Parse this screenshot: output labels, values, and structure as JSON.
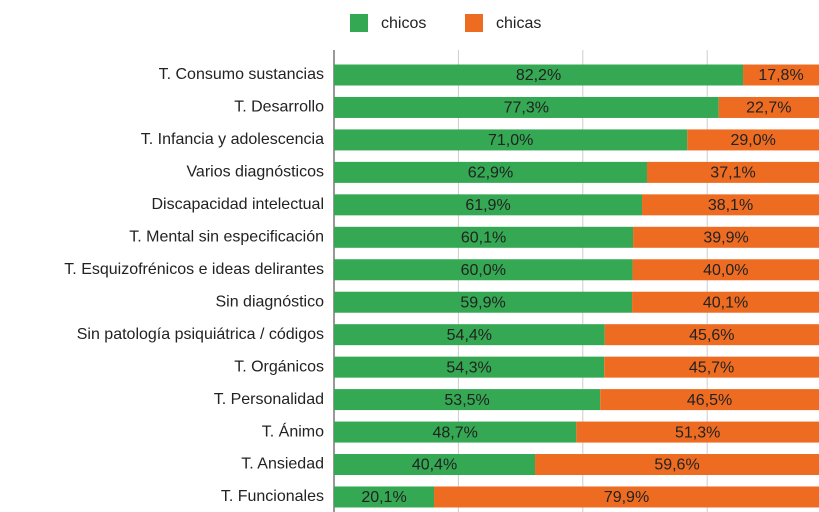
{
  "chart_data": {
    "type": "stacked-bar-horizontal",
    "categories": [
      "T. Consumo sustancias",
      "T. Desarrollo",
      "T. Infancia y adolescencia",
      "Varios diagnósticos",
      "Discapacidad intelectual",
      "T. Mental sin especificación",
      "T. Esquizofrénicos e ideas delirantes",
      "Sin diagnóstico",
      "Sin patología psiquiátrica / códigos",
      "T. Orgánicos",
      "T. Personalidad",
      "T. Ánimo",
      "T. Ansiedad",
      "T. Funcionales"
    ],
    "series": [
      {
        "name": "chicos",
        "color": "#34a853",
        "values": [
          82.2,
          77.3,
          71.0,
          62.9,
          61.9,
          60.1,
          60.0,
          59.9,
          54.4,
          54.3,
          53.5,
          48.7,
          40.4,
          20.1
        ],
        "value_labels": [
          "82,2%",
          "77,3%",
          "71,0%",
          "62,9%",
          "61,9%",
          "60,1%",
          "60,0%",
          "59,9%",
          "54,4%",
          "54,3%",
          "53,5%",
          "48,7%",
          "40,4%",
          "20,1%"
        ]
      },
      {
        "name": "chicas",
        "color": "#ee6c21",
        "values": [
          17.8,
          22.7,
          29.0,
          37.1,
          38.1,
          39.9,
          40.0,
          40.1,
          45.6,
          45.7,
          46.5,
          51.3,
          59.6,
          79.9
        ],
        "value_labels": [
          "17,8%",
          "22,7%",
          "29,0%",
          "37,1%",
          "38,1%",
          "39,9%",
          "40,0%",
          "40,1%",
          "45,6%",
          "45,7%",
          "46,5%",
          "51,3%",
          "59,6%",
          "79,9%"
        ]
      }
    ],
    "xlim": [
      0,
      100
    ],
    "xticks": [
      0,
      25,
      50,
      75,
      100
    ],
    "grid": true,
    "legend": "top"
  }
}
